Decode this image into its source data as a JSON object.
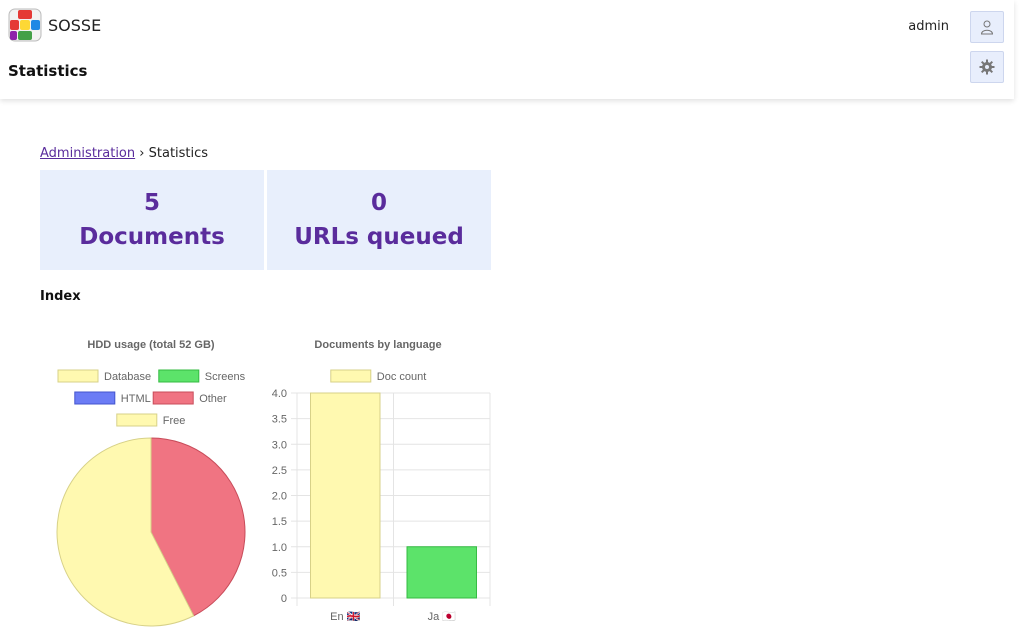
{
  "header": {
    "brand": "SOSSE",
    "page_title": "Statistics",
    "username": "admin",
    "icons": [
      "user-icon",
      "gear-icon"
    ]
  },
  "breadcrumb": {
    "link": "Administration",
    "separator": "›",
    "current": "Statistics"
  },
  "stats": [
    {
      "value": "5",
      "label": "Documents"
    },
    {
      "value": "0",
      "label": "URLs queued"
    }
  ],
  "section_title": "Index",
  "chart_data": [
    {
      "type": "pie",
      "title": "HDD usage (total 52 GB)",
      "labels": [
        "Database",
        "Screens",
        "HTML",
        "Other",
        "Free"
      ],
      "colors": [
        "#fff9b0",
        "#5ce36a",
        "#6b7cf5",
        "#f07482",
        "#fff9b0"
      ],
      "values": [
        0,
        0,
        0,
        42.5,
        57.5
      ],
      "legend": "top"
    },
    {
      "type": "bar",
      "title": "Documents by language",
      "categories": [
        "En 🇬🇧",
        "Ja 🇯🇵"
      ],
      "series": [
        {
          "name": "Doc count",
          "values": [
            4,
            1
          ],
          "colors": [
            "#fff9b0",
            "#5ce36a"
          ]
        }
      ],
      "yticks": [
        "0",
        "0.5",
        "1.0",
        "1.5",
        "2.0",
        "2.5",
        "3.0",
        "3.5",
        "4.0"
      ],
      "ylim": [
        0,
        4
      ],
      "grid": true,
      "legend": "top"
    }
  ]
}
